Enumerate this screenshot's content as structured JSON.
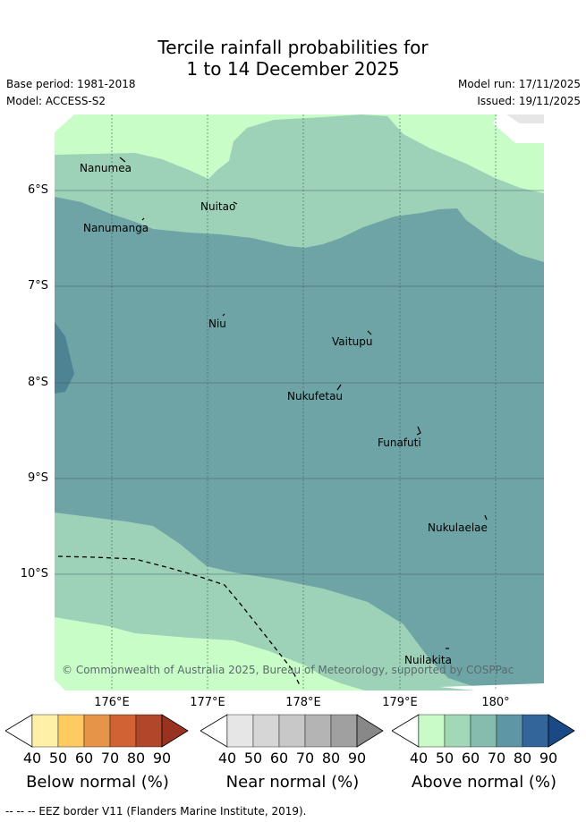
{
  "title_line1": "Tercile rainfall probabilities for",
  "title_line2": "1 to 14 December 2025",
  "base_period": "Base period: 1981-2018",
  "model": "Model: ACCESS-S2",
  "model_run": "Model run: 17/11/2025",
  "issued": "Issued: 19/11/2025",
  "lat_labels": [
    "6°S",
    "7°S",
    "8°S",
    "9°S",
    "10°S"
  ],
  "lon_labels": [
    "176°E",
    "177°E",
    "178°E",
    "179°E",
    "180°"
  ],
  "islands": [
    "Nanumea",
    "Nuitao",
    "Nanumanga",
    "Niu",
    "Vaitupu",
    "Nukufetau",
    "Funafuti",
    "Nukulaelae",
    "Nuilakita"
  ],
  "copyright": "© Commonwealth of Australia 2025, Bureau of Meteorology, supported by COSPPac",
  "colorbars": [
    {
      "title": "Below normal (%)",
      "ticks": [
        "40",
        "50",
        "60",
        "70",
        "80",
        "90"
      ],
      "colors": [
        "#fff0a8",
        "#fecb60",
        "#e69448",
        "#d06233",
        "#b2462a",
        "#9a3222"
      ]
    },
    {
      "title": "Near normal (%)",
      "ticks": [
        "40",
        "50",
        "60",
        "70",
        "80",
        "90"
      ],
      "colors": [
        "#e6e6e6",
        "#d6d6d6",
        "#c8c8c8",
        "#b4b4b4",
        "#a0a0a0",
        "#888888"
      ]
    },
    {
      "title": "Above normal (%)",
      "ticks": [
        "40",
        "50",
        "60",
        "70",
        "80",
        "90"
      ],
      "colors": [
        "#c9fbc9",
        "#a2d8b8",
        "#86bcae",
        "#5e97a3",
        "#33659b",
        "#1a4a86"
      ]
    }
  ],
  "footer": "-- -- -- EEZ border V11 (Flanders Marine Institute, 2019).",
  "map_colors": {
    "light": "#c8fdc8",
    "mid": "#9dd1b8",
    "dark": "#6ea4a6",
    "darker": "#4e8394",
    "gray": "#e6e6e6"
  }
}
